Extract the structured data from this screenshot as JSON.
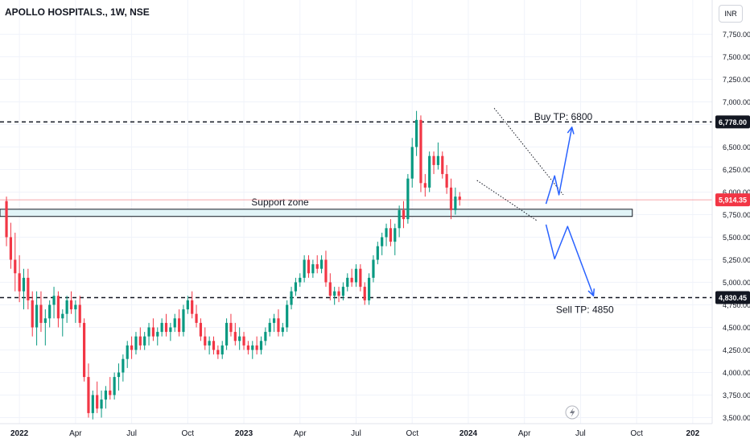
{
  "header": {
    "title": "APOLLO HOSPITALS., 1W, NSE",
    "currency": "INR"
  },
  "colors": {
    "up": "#089981",
    "down": "#f23645",
    "arrow": "#2962ff",
    "zone_fill": "#e1f4f7",
    "current_price_line": "#f7a6ac"
  },
  "chart_data": {
    "type": "candlestick",
    "symbol": "APOLLO HOSPITALS.",
    "interval": "1W",
    "exchange": "NSE",
    "ylim": [
      3450,
      8000
    ],
    "y_ticks": [
      3500,
      3750,
      4000,
      4250,
      4500,
      4750,
      5000,
      5250,
      5500,
      5750,
      6000,
      6250,
      6500,
      6750,
      7000,
      7250,
      7500,
      7750
    ],
    "y_tick_labels": [
      "3,500.00",
      "3,750.00",
      "4,000.00",
      "4,250.00",
      "4,500.00",
      "4,750.00",
      "5,000.00",
      "5,250.00",
      "5,500.00",
      "5,750.00",
      "6,000.00",
      "6,250.00",
      "6,500.00",
      "6,750.00",
      "7,000.00",
      "7,250.00",
      "7,500.00",
      "7,750.00"
    ],
    "x_ticks": [
      {
        "label": "2022",
        "week": 3
      },
      {
        "label": "Apr",
        "week": 16
      },
      {
        "label": "Jul",
        "week": 29
      },
      {
        "label": "Oct",
        "week": 42
      },
      {
        "label": "2023",
        "week": 55
      },
      {
        "label": "Apr",
        "week": 68
      },
      {
        "label": "Jul",
        "week": 81
      },
      {
        "label": "Oct",
        "week": 94
      },
      {
        "label": "2024",
        "week": 107
      },
      {
        "label": "Apr",
        "week": 120
      },
      {
        "label": "Jul",
        "week": 133
      },
      {
        "label": "Oct",
        "week": 146
      },
      {
        "label": "202",
        "week": 159
      }
    ],
    "x_range_weeks": [
      -1.5,
      163.5
    ],
    "price_lines": [
      {
        "price": 6778,
        "label": "6,778.00",
        "style": "dashed",
        "color": "#131722",
        "tag_bg": "#131722",
        "tag_fg": "#ffffff"
      },
      {
        "price": 5914.35,
        "label": "5,914.35",
        "style": "solid",
        "color": "#f7a6ac",
        "tag_bg": "#f23645",
        "tag_fg": "#ffffff"
      },
      {
        "price": 4830.45,
        "label": "4,830.45",
        "style": "dashed",
        "color": "#131722",
        "tag_bg": "#131722",
        "tag_fg": "#ffffff"
      }
    ],
    "support_zone": {
      "label": "Support zone",
      "low": 5730,
      "high": 5810,
      "from_week": -1.5,
      "to_week": 145
    },
    "annotations": [
      {
        "text": "Buy TP: 6800",
        "week": 129,
        "price": 6800
      },
      {
        "text": "Sell TP: 4850",
        "week": 134,
        "price": 4660
      }
    ],
    "wedge": {
      "upper": [
        [
          113,
          6930
        ],
        [
          129,
          5970
        ]
      ],
      "lower": [
        [
          109,
          6130
        ],
        [
          123,
          5680
        ]
      ]
    },
    "arrow_up": [
      [
        125,
        5870
      ],
      [
        127,
        6180
      ],
      [
        128,
        5970
      ],
      [
        131,
        6720
      ]
    ],
    "arrow_down": [
      [
        125,
        5640
      ],
      [
        127,
        5260
      ],
      [
        130,
        5620
      ],
      [
        136,
        4850
      ]
    ],
    "candles": [
      [
        5900,
        5950,
        5400,
        5500
      ],
      [
        5500,
        5660,
        5150,
        5250
      ],
      [
        5250,
        5550,
        4900,
        5100
      ],
      [
        5100,
        5300,
        4780,
        4900
      ],
      [
        4900,
        5150,
        4700,
        5050
      ],
      [
        5050,
        5150,
        4700,
        4800
      ],
      [
        4800,
        4900,
        4400,
        4500
      ],
      [
        4500,
        4900,
        4300,
        4750
      ],
      [
        4750,
        4900,
        4450,
        4550
      ],
      [
        4550,
        4700,
        4300,
        4600
      ],
      [
        4600,
        4800,
        4500,
        4750
      ],
      [
        4750,
        4950,
        4600,
        4850
      ],
      [
        4850,
        4900,
        4500,
        4600
      ],
      [
        4600,
        4700,
        4400,
        4650
      ],
      [
        4650,
        4850,
        4550,
        4800
      ],
      [
        4800,
        4900,
        4650,
        4700
      ],
      [
        4700,
        4800,
        4550,
        4750
      ],
      [
        4750,
        4850,
        4500,
        4550
      ],
      [
        4550,
        4600,
        3900,
        3950
      ],
      [
        3950,
        4100,
        3500,
        3550
      ],
      [
        3550,
        3800,
        3480,
        3750
      ],
      [
        3750,
        3900,
        3550,
        3600
      ],
      [
        3600,
        3800,
        3500,
        3700
      ],
      [
        3700,
        3850,
        3600,
        3800
      ],
      [
        3800,
        3950,
        3700,
        3750
      ],
      [
        3750,
        4000,
        3700,
        3950
      ],
      [
        3950,
        4100,
        3800,
        4000
      ],
      [
        4000,
        4200,
        3900,
        4150
      ],
      [
        4150,
        4350,
        4050,
        4300
      ],
      [
        4300,
        4400,
        4150,
        4250
      ],
      [
        4250,
        4450,
        4200,
        4400
      ],
      [
        4400,
        4500,
        4250,
        4300
      ],
      [
        4300,
        4450,
        4250,
        4400
      ],
      [
        4400,
        4550,
        4300,
        4500
      ],
      [
        4500,
        4600,
        4350,
        4400
      ],
      [
        4400,
        4500,
        4300,
        4450
      ],
      [
        4450,
        4600,
        4400,
        4550
      ],
      [
        4550,
        4650,
        4400,
        4450
      ],
      [
        4450,
        4550,
        4350,
        4500
      ],
      [
        4500,
        4650,
        4450,
        4600
      ],
      [
        4600,
        4700,
        4400,
        4450
      ],
      [
        4450,
        4750,
        4400,
        4700
      ],
      [
        4700,
        4850,
        4650,
        4800
      ],
      [
        4800,
        4900,
        4600,
        4650
      ],
      [
        4650,
        4750,
        4500,
        4550
      ],
      [
        4550,
        4600,
        4350,
        4400
      ],
      [
        4400,
        4500,
        4250,
        4300
      ],
      [
        4300,
        4400,
        4200,
        4350
      ],
      [
        4350,
        4400,
        4200,
        4250
      ],
      [
        4250,
        4300,
        4150,
        4200
      ],
      [
        4200,
        4350,
        4150,
        4300
      ],
      [
        4300,
        4600,
        4250,
        4550
      ],
      [
        4550,
        4650,
        4400,
        4450
      ],
      [
        4450,
        4550,
        4300,
        4350
      ],
      [
        4350,
        4500,
        4250,
        4400
      ],
      [
        4400,
        4450,
        4250,
        4300
      ],
      [
        4300,
        4350,
        4200,
        4250
      ],
      [
        4250,
        4350,
        4150,
        4300
      ],
      [
        4300,
        4400,
        4200,
        4250
      ],
      [
        4250,
        4400,
        4200,
        4350
      ],
      [
        4350,
        4500,
        4300,
        4450
      ],
      [
        4450,
        4600,
        4400,
        4550
      ],
      [
        4550,
        4650,
        4450,
        4600
      ],
      [
        4600,
        4700,
        4400,
        4450
      ],
      [
        4450,
        4550,
        4400,
        4500
      ],
      [
        4500,
        4800,
        4450,
        4750
      ],
      [
        4750,
        4950,
        4700,
        4900
      ],
      [
        4900,
        5050,
        4850,
        5000
      ],
      [
        5000,
        5100,
        4950,
        5050
      ],
      [
        5050,
        5300,
        5000,
        5250
      ],
      [
        5250,
        5300,
        5050,
        5100
      ],
      [
        5100,
        5250,
        5050,
        5200
      ],
      [
        5200,
        5300,
        5100,
        5150
      ],
      [
        5150,
        5300,
        5100,
        5250
      ],
      [
        5250,
        5350,
        4950,
        5000
      ],
      [
        5000,
        5100,
        4800,
        4850
      ],
      [
        4850,
        4950,
        4750,
        4900
      ],
      [
        4900,
        4950,
        4780,
        4850
      ],
      [
        4850,
        5000,
        4800,
        4950
      ],
      [
        4950,
        5100,
        4900,
        5050
      ],
      [
        5050,
        5150,
        4950,
        5000
      ],
      [
        5000,
        5200,
        4950,
        5150
      ],
      [
        5150,
        5200,
        4900,
        4950
      ],
      [
        4950,
        5000,
        4750,
        4800
      ],
      [
        4800,
        5100,
        4750,
        5050
      ],
      [
        5050,
        5300,
        5000,
        5250
      ],
      [
        5250,
        5450,
        5200,
        5400
      ],
      [
        5400,
        5550,
        5300,
        5500
      ],
      [
        5500,
        5650,
        5400,
        5600
      ],
      [
        5600,
        5700,
        5400,
        5450
      ],
      [
        5450,
        5650,
        5300,
        5600
      ],
      [
        5600,
        5850,
        5500,
        5800
      ],
      [
        5800,
        5900,
        5600,
        5700
      ],
      [
        5700,
        6200,
        5650,
        6150
      ],
      [
        6150,
        6600,
        6050,
        6500
      ],
      [
        6500,
        6900,
        6400,
        6800
      ],
      [
        6800,
        6850,
        6000,
        6100
      ],
      [
        6100,
        6200,
        5950,
        6050
      ],
      [
        6050,
        6450,
        6000,
        6400
      ],
      [
        6400,
        6450,
        6200,
        6300
      ],
      [
        6300,
        6550,
        6250,
        6400
      ],
      [
        6400,
        6450,
        6150,
        6200
      ],
      [
        6200,
        6300,
        5980,
        6050
      ],
      [
        6050,
        6150,
        5700,
        5800
      ],
      [
        5800,
        6050,
        5750,
        5950
      ],
      [
        5950,
        6000,
        5850,
        5914.35
      ]
    ]
  }
}
